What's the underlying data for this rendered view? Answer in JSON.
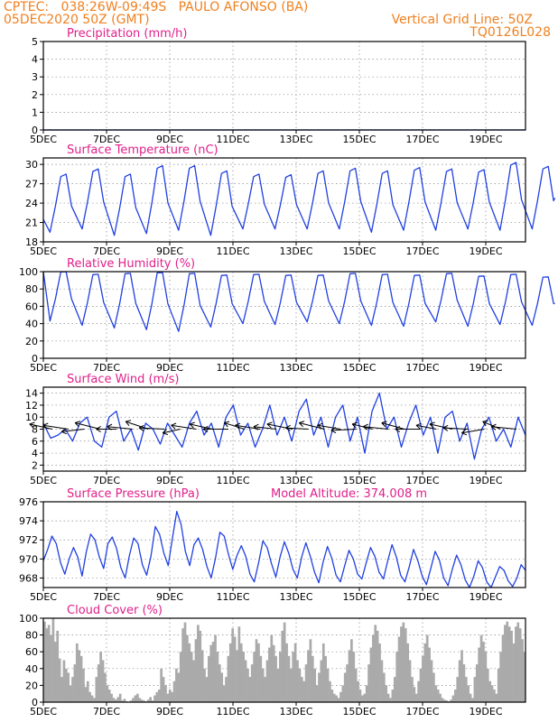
{
  "header": {
    "line1_left": "CPTEC:   038:26W-09:49S   PAULO AFONSO (BA)",
    "line2_left": "05DEC2020 50Z (GMT)",
    "line1_right": "Vertical Grid Line: 50Z",
    "line2_right": "TQ0126L028"
  },
  "colors": {
    "header": "#f08020",
    "title": "#e0208a",
    "line": "#2040e0",
    "bars": "#aaaaaa",
    "grid": "#888888",
    "frame": "#000000"
  },
  "chart_data": [
    {
      "type": "line",
      "title": "Precipitation (mm/h)",
      "ylim": [
        0,
        5
      ],
      "yticks": [
        0,
        1,
        2,
        3,
        4,
        5
      ],
      "xticks": [
        "5DEC",
        "7DEC",
        "9DEC",
        "11DEC",
        "13DEC",
        "15DEC",
        "17DEC",
        "19DEC"
      ],
      "series": [
        {
          "min": 0,
          "max": 0,
          "amp": 0,
          "phase": 0,
          "values": [
            0,
            0,
            0,
            0,
            0,
            0,
            0,
            0,
            0,
            0,
            0,
            0,
            0,
            0,
            0,
            0
          ]
        }
      ]
    },
    {
      "type": "line",
      "title": "Surface Temperature (nC)",
      "ylim": [
        18,
        31
      ],
      "yticks": [
        18,
        21,
        24,
        27,
        30
      ],
      "xticks": [
        "5DEC",
        "7DEC",
        "9DEC",
        "11DEC",
        "13DEC",
        "15DEC",
        "17DEC",
        "19DEC"
      ],
      "daily_max": [
        28.5,
        29.3,
        28.5,
        29.8,
        29.8,
        29.0,
        28.5,
        28.4,
        29.0,
        29.4,
        29.0,
        29.5,
        29.3,
        29.2,
        30.3,
        29.7
      ],
      "daily_min": [
        19.5,
        20.0,
        19.0,
        19.3,
        19.8,
        19.0,
        20.0,
        20.0,
        20.0,
        20.0,
        19.5,
        19.8,
        19.8,
        20.0,
        19.8,
        20.0
      ],
      "start_value": 21.5,
      "end_value": 24.8
    },
    {
      "type": "line",
      "title": "Relative Humidity (%)",
      "ylim": [
        0,
        100
      ],
      "yticks": [
        0,
        20,
        40,
        60,
        80,
        100
      ],
      "xticks": [
        "5DEC",
        "7DEC",
        "9DEC",
        "11DEC",
        "13DEC",
        "15DEC",
        "17DEC",
        "19DEC"
      ],
      "daily_max": [
        100,
        97,
        98,
        99,
        98,
        96,
        97,
        96,
        96,
        98,
        97,
        96,
        98,
        95,
        97,
        94
      ],
      "daily_min": [
        43,
        38,
        35,
        33,
        31,
        36,
        40,
        39,
        42,
        40,
        38,
        37,
        42,
        37,
        39,
        38
      ],
      "start_value": 100,
      "end_value": 63
    },
    {
      "type": "line",
      "title": "Surface Wind (m/s)",
      "ylim": [
        1,
        15
      ],
      "yticks": [
        2,
        4,
        6,
        8,
        10,
        12,
        14
      ],
      "xticks": [
        "5DEC",
        "7DEC",
        "9DEC",
        "11DEC",
        "13DEC",
        "15DEC",
        "17DEC",
        "19DEC"
      ],
      "speed": [
        9,
        6.5,
        7,
        8,
        6,
        9,
        10,
        6,
        5,
        10,
        11,
        6,
        8,
        4.5,
        9,
        8,
        5.5,
        9,
        7,
        5,
        9,
        11,
        7,
        9,
        5,
        10,
        12,
        7,
        9,
        5,
        8,
        12,
        7,
        10,
        6,
        11,
        13,
        7,
        10,
        5,
        10,
        12,
        6,
        10,
        4,
        11,
        14,
        8,
        10,
        5,
        9,
        12,
        7,
        10,
        4,
        10,
        11,
        6,
        9,
        3,
        8,
        10,
        6,
        8,
        5,
        10,
        7
      ],
      "vectors": [
        {
          "u": -0.9,
          "v": 0.4
        },
        {
          "u": -1.0,
          "v": 0.3
        },
        {
          "u": -0.9,
          "v": -0.2
        },
        {
          "u": -1.0,
          "v": 0.5
        },
        {
          "u": -0.8,
          "v": 0.0
        },
        {
          "u": -1.0,
          "v": 0.2
        },
        {
          "u": -0.9,
          "v": 0.6
        },
        {
          "u": -1.0,
          "v": 0.1
        },
        {
          "u": -0.7,
          "v": -0.3
        },
        {
          "u": -1.0,
          "v": 0.3
        },
        {
          "u": -0.9,
          "v": 0.4
        },
        {
          "u": -1.0,
          "v": 0.0
        },
        {
          "u": -0.8,
          "v": 0.5
        },
        {
          "u": -1.0,
          "v": 0.3
        },
        {
          "u": -0.9,
          "v": 0.2
        },
        {
          "u": -1.0,
          "v": 0.4
        },
        {
          "u": -0.9,
          "v": 0.1
        },
        {
          "u": -1.0,
          "v": 0.5
        },
        {
          "u": -0.9,
          "v": 0.3
        },
        {
          "u": -1.0,
          "v": -0.1
        },
        {
          "u": -0.8,
          "v": 0.4
        },
        {
          "u": -1.0,
          "v": 0.2
        },
        {
          "u": -0.9,
          "v": 0.5
        },
        {
          "u": -1.0,
          "v": 0.0
        },
        {
          "u": -0.8,
          "v": 0.3
        },
        {
          "u": -0.9,
          "v": 0.4
        },
        {
          "u": -1.0,
          "v": 0.1
        },
        {
          "u": -0.9,
          "v": -0.3
        },
        {
          "u": -0.7,
          "v": 0.6
        },
        {
          "u": -1.0,
          "v": 0.2
        }
      ]
    },
    {
      "type": "line",
      "title": "Surface Pressure (hPa)",
      "subtitle": "Model Altitude: 374.008 m",
      "ylim": [
        967,
        976
      ],
      "yticks": [
        968,
        970,
        972,
        974,
        976
      ],
      "xticks": [
        "5DEC",
        "7DEC",
        "9DEC",
        "11DEC",
        "13DEC",
        "15DEC",
        "17DEC",
        "19DEC"
      ],
      "values": [
        969.8,
        971,
        972.4,
        971.6,
        969.6,
        968.4,
        970,
        971.2,
        970.2,
        968.2,
        970.8,
        972.6,
        972.0,
        970.2,
        969.0,
        971.6,
        972.3,
        971.1,
        969.1,
        968.0,
        970.4,
        972.2,
        971.6,
        969.4,
        968.3,
        970.3,
        973.4,
        972.6,
        970.6,
        969.3,
        972.2,
        975.0,
        973.6,
        970.8,
        969.3,
        971.5,
        972.2,
        971.0,
        969.2,
        968.0,
        970.1,
        972.8,
        972.4,
        970.5,
        968.9,
        970.4,
        971.4,
        970.3,
        968.4,
        967.6,
        969.6,
        971.9,
        971.2,
        969.5,
        968.1,
        970.2,
        971.8,
        970.6,
        968.9,
        968.0,
        970.2,
        971.7,
        970.3,
        968.6,
        967.5,
        969.7,
        971.3,
        970.1,
        968.3,
        967.6,
        969.3,
        970.9,
        970.0,
        968.4,
        967.9,
        969.6,
        971.2,
        970.3,
        968.6,
        967.9,
        969.8,
        971.5,
        970.2,
        968.3,
        967.6,
        969.2,
        971.0,
        969.8,
        968.2,
        967.3,
        969.0,
        970.8,
        969.9,
        968.0,
        967.2,
        968.9,
        970.4,
        969.4,
        967.8,
        966.9,
        968.2,
        969.8,
        969.1,
        967.6,
        967.0,
        968.1,
        969.2,
        968.8,
        967.7,
        967.1,
        968.0,
        969.4,
        968.8
      ]
    },
    {
      "type": "bar",
      "title": "Cloud Cover (%)",
      "ylim": [
        0,
        100
      ],
      "yticks": [
        0,
        20,
        40,
        60,
        80,
        100
      ],
      "xticks": [
        "5DEC",
        "7DEC",
        "9DEC",
        "11DEC",
        "13DEC",
        "15DEC",
        "17DEC",
        "19DEC"
      ],
      "values": [
        96,
        88,
        92,
        80,
        100,
        72,
        85,
        52,
        30,
        50,
        40,
        35,
        20,
        30,
        45,
        70,
        62,
        55,
        40,
        18,
        25,
        12,
        8,
        5,
        30,
        45,
        60,
        50,
        35,
        20,
        15,
        10,
        5,
        3,
        6,
        10,
        2,
        4,
        1,
        0,
        2,
        5,
        8,
        10,
        5,
        3,
        2,
        1,
        3,
        6,
        2,
        8,
        12,
        15,
        40,
        30,
        20,
        10,
        15,
        12,
        25,
        40,
        35,
        60,
        88,
        95,
        80,
        70,
        60,
        50,
        75,
        92,
        85,
        62,
        40,
        30,
        55,
        68,
        72,
        80,
        60,
        45,
        35,
        20,
        30,
        55,
        70,
        88,
        78,
        62,
        90,
        70,
        60,
        50,
        40,
        30,
        45,
        60,
        75,
        70,
        55,
        40,
        30,
        50,
        65,
        80,
        68,
        55,
        40,
        60,
        85,
        95,
        70,
        55,
        40,
        60,
        70,
        50,
        40,
        30,
        25,
        45,
        62,
        75,
        55,
        40,
        20,
        35,
        50,
        70,
        55,
        40,
        25,
        15,
        10,
        8,
        5,
        12,
        20,
        35,
        45,
        62,
        75,
        60,
        40,
        25,
        15,
        8,
        10,
        20,
        45,
        65,
        80,
        92,
        85,
        70,
        50,
        35,
        20,
        10,
        5,
        15,
        30,
        60,
        78,
        90,
        95,
        88,
        70,
        50,
        30,
        18,
        10,
        25,
        40,
        55,
        70,
        80,
        65,
        50,
        35,
        20,
        15,
        10,
        5,
        3,
        2,
        1,
        3,
        8,
        15,
        30,
        50,
        62,
        45,
        30,
        20,
        10,
        5,
        30,
        45,
        65,
        80,
        72,
        60,
        40,
        25,
        20,
        15,
        10,
        40,
        60,
        80,
        92,
        96,
        90,
        85,
        70,
        90,
        95,
        88,
        75,
        60
      ]
    }
  ]
}
